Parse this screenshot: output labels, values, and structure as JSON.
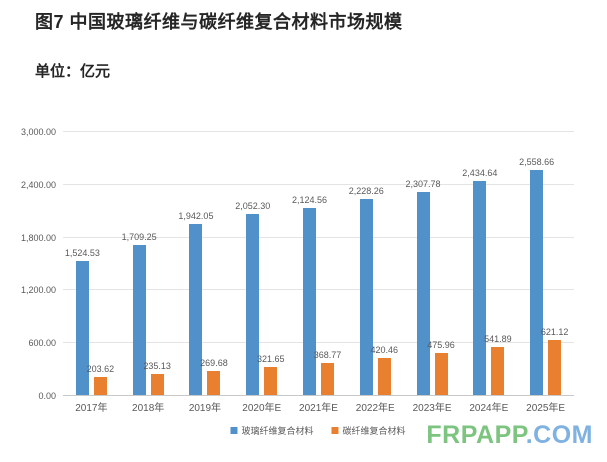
{
  "header": {
    "title": "图7 中国玻璃纤维与碳纤维复合材料市场规模",
    "unit_label": "单位：亿元"
  },
  "chart_data": {
    "type": "bar",
    "title": "图7 中国玻璃纤维与碳纤维复合材料市场规模",
    "unit": "亿元",
    "categories": [
      "2017年",
      "2018年",
      "2019年",
      "2020年E",
      "2021年E",
      "2022年E",
      "2023年E",
      "2024年E",
      "2025年E"
    ],
    "series": [
      {
        "name": "玻璃纤维复合材料",
        "color": "#5191C9",
        "values": [
          1524.53,
          1709.25,
          1942.05,
          2052.3,
          2124.56,
          2228.26,
          2307.78,
          2434.64,
          2558.66
        ]
      },
      {
        "name": "碳纤维复合材料",
        "color": "#E8802F",
        "values": [
          203.62,
          235.13,
          269.68,
          321.65,
          368.77,
          420.46,
          475.96,
          541.89,
          621.12
        ]
      }
    ],
    "ylim": [
      0,
      3000
    ],
    "ytick_step": 600,
    "ytick_labels": [
      "0.00",
      "600.00",
      "1,200.00",
      "1,800.00",
      "2,400.00",
      "3,000.00"
    ],
    "grid": true,
    "data_labels": true,
    "legend_position": "bottom"
  },
  "colors": {
    "label_text": "#595959",
    "gridline": "#e4e4e4",
    "axis_line": "#c9c9c9",
    "title_text": "#262626"
  },
  "watermark": {
    "prefix": "FRPAPP",
    "suffix": ".COM",
    "prefix_color": "#7cc47f",
    "suffix_color": "#7fb2e0"
  }
}
